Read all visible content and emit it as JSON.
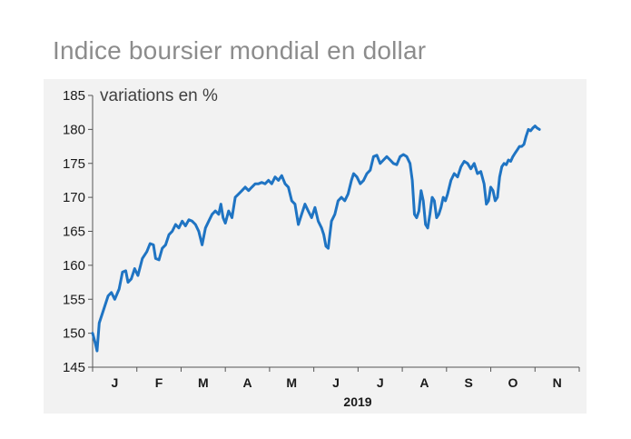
{
  "title": "Indice boursier mondial en dollar",
  "chart_data": {
    "type": "line",
    "title": "Indice boursier mondial en dollar",
    "unit_label": "variations en %",
    "year_label": "2019",
    "ylim": [
      145,
      185
    ],
    "y_ticks": [
      145,
      150,
      155,
      160,
      165,
      170,
      175,
      180,
      185
    ],
    "months": [
      "J",
      "F",
      "M",
      "A",
      "M",
      "J",
      "J",
      "A",
      "S",
      "O",
      "N"
    ],
    "x_range_weeks": [
      0,
      44
    ],
    "line_color": "#1f74c3",
    "grid": false,
    "series": [
      {
        "values": [
          [
            0.0,
            150.0
          ],
          [
            0.25,
            148.5
          ],
          [
            0.4,
            147.4
          ],
          [
            0.6,
            151.5
          ],
          [
            1.0,
            153.5
          ],
          [
            1.4,
            155.5
          ],
          [
            1.7,
            156.0
          ],
          [
            2.0,
            155.0
          ],
          [
            2.4,
            156.5
          ],
          [
            2.7,
            159.0
          ],
          [
            3.0,
            159.2
          ],
          [
            3.2,
            157.5
          ],
          [
            3.5,
            158.0
          ],
          [
            3.8,
            159.5
          ],
          [
            4.1,
            158.5
          ],
          [
            4.5,
            161.0
          ],
          [
            4.9,
            162.0
          ],
          [
            5.2,
            163.2
          ],
          [
            5.5,
            163.0
          ],
          [
            5.7,
            161.0
          ],
          [
            6.0,
            160.8
          ],
          [
            6.3,
            162.5
          ],
          [
            6.6,
            163.0
          ],
          [
            6.9,
            164.5
          ],
          [
            7.2,
            165.0
          ],
          [
            7.5,
            166.0
          ],
          [
            7.8,
            165.5
          ],
          [
            8.1,
            166.5
          ],
          [
            8.4,
            165.8
          ],
          [
            8.7,
            166.7
          ],
          [
            9.0,
            166.5
          ],
          [
            9.3,
            166.0
          ],
          [
            9.6,
            165.0
          ],
          [
            9.9,
            163.0
          ],
          [
            10.2,
            165.5
          ],
          [
            10.5,
            166.5
          ],
          [
            10.8,
            167.5
          ],
          [
            11.1,
            168.0
          ],
          [
            11.4,
            167.5
          ],
          [
            11.6,
            169.0
          ],
          [
            11.8,
            167.0
          ],
          [
            12.0,
            166.2
          ],
          [
            12.3,
            168.0
          ],
          [
            12.6,
            167.0
          ],
          [
            12.9,
            170.0
          ],
          [
            13.2,
            170.5
          ],
          [
            13.5,
            171.0
          ],
          [
            13.8,
            171.5
          ],
          [
            14.1,
            171.0
          ],
          [
            14.4,
            171.5
          ],
          [
            14.7,
            172.0
          ],
          [
            15.0,
            172.0
          ],
          [
            15.3,
            172.2
          ],
          [
            15.6,
            172.0
          ],
          [
            15.9,
            172.5
          ],
          [
            16.2,
            172.0
          ],
          [
            16.5,
            173.0
          ],
          [
            16.8,
            172.5
          ],
          [
            17.1,
            173.2
          ],
          [
            17.4,
            172.0
          ],
          [
            17.7,
            171.5
          ],
          [
            18.0,
            169.5
          ],
          [
            18.3,
            169.0
          ],
          [
            18.6,
            166.0
          ],
          [
            18.9,
            167.5
          ],
          [
            19.2,
            169.0
          ],
          [
            19.5,
            168.0
          ],
          [
            19.8,
            167.0
          ],
          [
            20.1,
            168.5
          ],
          [
            20.4,
            166.5
          ],
          [
            20.7,
            165.5
          ],
          [
            20.9,
            164.5
          ],
          [
            21.1,
            162.8
          ],
          [
            21.3,
            162.5
          ],
          [
            21.6,
            166.5
          ],
          [
            21.9,
            167.5
          ],
          [
            22.2,
            169.5
          ],
          [
            22.5,
            170.0
          ],
          [
            22.8,
            169.5
          ],
          [
            23.1,
            170.5
          ],
          [
            23.4,
            172.5
          ],
          [
            23.6,
            173.5
          ],
          [
            23.9,
            173.0
          ],
          [
            24.2,
            172.0
          ],
          [
            24.5,
            172.5
          ],
          [
            24.8,
            173.5
          ],
          [
            25.1,
            174.0
          ],
          [
            25.4,
            176.0
          ],
          [
            25.7,
            176.2
          ],
          [
            26.0,
            175.0
          ],
          [
            26.3,
            175.5
          ],
          [
            26.6,
            176.0
          ],
          [
            26.9,
            175.5
          ],
          [
            27.2,
            175.0
          ],
          [
            27.5,
            174.8
          ],
          [
            27.8,
            176.0
          ],
          [
            28.1,
            176.3
          ],
          [
            28.4,
            176.0
          ],
          [
            28.7,
            175.0
          ],
          [
            28.9,
            172.5
          ],
          [
            29.1,
            167.5
          ],
          [
            29.3,
            167.0
          ],
          [
            29.5,
            168.0
          ],
          [
            29.7,
            171.0
          ],
          [
            29.9,
            169.5
          ],
          [
            30.1,
            166.0
          ],
          [
            30.3,
            165.5
          ],
          [
            30.5,
            167.5
          ],
          [
            30.7,
            170.0
          ],
          [
            30.9,
            169.5
          ],
          [
            31.1,
            167.0
          ],
          [
            31.3,
            167.5
          ],
          [
            31.5,
            168.5
          ],
          [
            31.7,
            170.0
          ],
          [
            31.9,
            169.5
          ],
          [
            32.1,
            170.5
          ],
          [
            32.4,
            172.5
          ],
          [
            32.7,
            173.5
          ],
          [
            33.0,
            173.0
          ],
          [
            33.3,
            174.5
          ],
          [
            33.6,
            175.3
          ],
          [
            33.9,
            175.0
          ],
          [
            34.2,
            174.2
          ],
          [
            34.5,
            175.0
          ],
          [
            34.8,
            173.5
          ],
          [
            35.1,
            173.8
          ],
          [
            35.4,
            172.0
          ],
          [
            35.6,
            169.0
          ],
          [
            35.8,
            169.5
          ],
          [
            36.0,
            171.5
          ],
          [
            36.2,
            171.0
          ],
          [
            36.4,
            169.5
          ],
          [
            36.6,
            170.0
          ],
          [
            36.8,
            173.0
          ],
          [
            37.0,
            174.5
          ],
          [
            37.2,
            175.0
          ],
          [
            37.4,
            174.8
          ],
          [
            37.6,
            175.5
          ],
          [
            37.8,
            175.3
          ],
          [
            38.0,
            176.0
          ],
          [
            38.2,
            176.5
          ],
          [
            38.4,
            177.0
          ],
          [
            38.6,
            177.5
          ],
          [
            38.8,
            177.5
          ],
          [
            39.0,
            177.8
          ],
          [
            39.2,
            179.0
          ],
          [
            39.4,
            180.0
          ],
          [
            39.6,
            179.8
          ],
          [
            39.8,
            180.2
          ],
          [
            40.0,
            180.5
          ],
          [
            40.2,
            180.2
          ],
          [
            40.4,
            180.0
          ]
        ]
      }
    ]
  }
}
